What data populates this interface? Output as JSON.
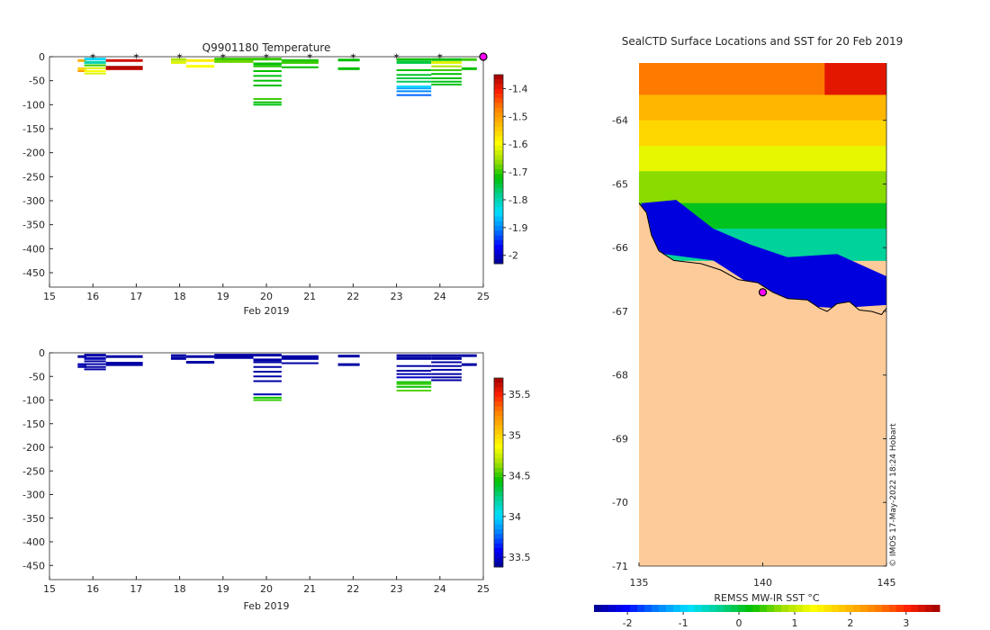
{
  "palette": [
    "#00008f",
    "#0000ff",
    "#0080ff",
    "#00e0ff",
    "#00d090",
    "#00c000",
    "#a0e000",
    "#ffff00",
    "#ffc000",
    "#ff8000",
    "#ff2000",
    "#a00000"
  ],
  "land_color": "#fccb99",
  "marker_color": "#ff00ff",
  "chart_data": [
    {
      "id": "temperature",
      "type": "heatmap",
      "title": "Q9901180  Temperature",
      "xlabel": "Feb 2019",
      "ylabel": "",
      "xlim": [
        15,
        25
      ],
      "ylim": [
        -480,
        0
      ],
      "xticks": [
        15,
        16,
        17,
        18,
        19,
        20,
        21,
        22,
        23,
        24,
        25
      ],
      "yticks": [
        0,
        -50,
        -100,
        -150,
        -200,
        -250,
        -300,
        -350,
        -400,
        -450
      ],
      "colorbar": {
        "min": -2.03,
        "max": -1.35,
        "ticks": [
          -1.4,
          -1.5,
          -1.6,
          -1.7,
          -1.8,
          -1.9,
          -2
        ]
      },
      "surface_markers": [
        16,
        17,
        18,
        19,
        20,
        21,
        22,
        23,
        24
      ],
      "current_marker": 25,
      "profiles": [
        {
          "x0": 15.65,
          "x1": 15.85,
          "layers": [
            [
              -8,
              -1.52
            ],
            [
              -25,
              -1.55
            ],
            [
              -30,
              -1.5
            ]
          ]
        },
        {
          "x0": 15.8,
          "x1": 16.3,
          "layers": [
            [
              -5,
              -1.85
            ],
            [
              -12,
              -1.8
            ],
            [
              -18,
              -1.7
            ],
            [
              -24,
              -1.62
            ],
            [
              -30,
              -1.6
            ],
            [
              -35,
              -1.62
            ]
          ]
        },
        {
          "x0": 16.3,
          "x1": 17.15,
          "layers": [
            [
              -8,
              -1.38
            ],
            [
              -22,
              -1.36
            ],
            [
              -26,
              -1.37
            ]
          ]
        },
        {
          "x0": 17.8,
          "x1": 18.15,
          "layers": [
            [
              -6,
              -1.65
            ],
            [
              -12,
              -1.62
            ]
          ]
        },
        {
          "x0": 18.15,
          "x1": 18.8,
          "layers": [
            [
              -8,
              -1.58
            ],
            [
              -20,
              -1.6
            ]
          ]
        },
        {
          "x0": 18.8,
          "x1": 19.7,
          "layers": [
            [
              -5,
              -1.7
            ],
            [
              -10,
              -1.68
            ]
          ]
        },
        {
          "x0": 19.7,
          "x1": 20.35,
          "layers": [
            [
              -5,
              -1.7
            ],
            [
              -15,
              -1.72
            ],
            [
              -20,
              -1.71
            ],
            [
              -30,
              -1.72
            ],
            [
              -40,
              -1.73
            ],
            [
              -50,
              -1.72
            ],
            [
              -60,
              -1.72
            ],
            [
              -88,
              -1.7
            ],
            [
              -95,
              -1.72
            ],
            [
              -100,
              -1.73
            ]
          ]
        },
        {
          "x0": 20.35,
          "x1": 21.2,
          "layers": [
            [
              -8,
              -1.71
            ],
            [
              -12,
              -1.7
            ],
            [
              -22,
              -1.72
            ]
          ]
        },
        {
          "x0": 21.65,
          "x1": 22.15,
          "layers": [
            [
              -7,
              -1.72
            ],
            [
              -25,
              -1.72
            ]
          ]
        },
        {
          "x0": 23.0,
          "x1": 23.8,
          "layers": [
            [
              -6,
              -1.72
            ],
            [
              -12,
              -1.75
            ],
            [
              -28,
              -1.72
            ],
            [
              -38,
              -1.74
            ],
            [
              -45,
              -1.75
            ],
            [
              -52,
              -1.76
            ],
            [
              -62,
              -1.85
            ],
            [
              -66,
              -1.88
            ],
            [
              -72,
              -1.9
            ],
            [
              -80,
              -1.92
            ]
          ]
        },
        {
          "x0": 23.8,
          "x1": 24.5,
          "layers": [
            [
              -6,
              -1.72
            ],
            [
              -12,
              -1.62
            ],
            [
              -20,
              -1.65
            ],
            [
              -28,
              -1.7
            ],
            [
              -36,
              -1.72
            ],
            [
              -45,
              -1.72
            ],
            [
              -52,
              -1.73
            ],
            [
              -58,
              -1.73
            ]
          ]
        },
        {
          "x0": 24.5,
          "x1": 24.85,
          "layers": [
            [
              -6,
              -1.7
            ],
            [
              -25,
              -1.72
            ]
          ]
        }
      ]
    },
    {
      "id": "salinity",
      "type": "heatmap",
      "title": "",
      "xlabel": "Feb 2019",
      "ylabel": "",
      "xlim": [
        15,
        25
      ],
      "ylim": [
        -480,
        0
      ],
      "xticks": [
        15,
        16,
        17,
        18,
        19,
        20,
        21,
        22,
        23,
        24,
        25
      ],
      "yticks": [
        0,
        -50,
        -100,
        -150,
        -200,
        -250,
        -300,
        -350,
        -400,
        -450
      ],
      "colorbar": {
        "min": 33.38,
        "max": 35.7,
        "ticks": [
          35.5,
          35,
          34.5,
          34,
          33.5
        ]
      },
      "profiles": [
        {
          "x0": 15.65,
          "x1": 15.85,
          "layers": [
            [
              -8,
              33.42
            ],
            [
              -25,
              33.45
            ],
            [
              -30,
              33.42
            ]
          ]
        },
        {
          "x0": 15.8,
          "x1": 16.3,
          "layers": [
            [
              -5,
              33.42
            ],
            [
              -12,
              33.45
            ],
            [
              -18,
              33.42
            ],
            [
              -24,
              33.43
            ],
            [
              -30,
              33.42
            ],
            [
              -35,
              33.42
            ]
          ]
        },
        {
          "x0": 16.3,
          "x1": 17.15,
          "layers": [
            [
              -8,
              33.42
            ],
            [
              -22,
              33.42
            ],
            [
              -26,
              33.42
            ]
          ]
        },
        {
          "x0": 17.8,
          "x1": 18.15,
          "layers": [
            [
              -6,
              33.42
            ],
            [
              -12,
              33.42
            ]
          ]
        },
        {
          "x0": 18.15,
          "x1": 18.8,
          "layers": [
            [
              -8,
              33.42
            ],
            [
              -20,
              33.42
            ]
          ]
        },
        {
          "x0": 18.8,
          "x1": 19.7,
          "layers": [
            [
              -5,
              33.42
            ],
            [
              -10,
              33.42
            ]
          ]
        },
        {
          "x0": 19.7,
          "x1": 20.35,
          "layers": [
            [
              -5,
              33.42
            ],
            [
              -15,
              33.42
            ],
            [
              -20,
              33.42
            ],
            [
              -30,
              33.42
            ],
            [
              -40,
              33.42
            ],
            [
              -50,
              33.42
            ],
            [
              -60,
              33.42
            ],
            [
              -88,
              33.45
            ],
            [
              -95,
              34.45
            ],
            [
              -100,
              34.5
            ]
          ]
        },
        {
          "x0": 20.35,
          "x1": 21.2,
          "layers": [
            [
              -8,
              33.42
            ],
            [
              -12,
              33.42
            ],
            [
              -22,
              33.42
            ]
          ]
        },
        {
          "x0": 21.65,
          "x1": 22.15,
          "layers": [
            [
              -7,
              33.42
            ],
            [
              -25,
              33.42
            ]
          ]
        },
        {
          "x0": 23.0,
          "x1": 23.8,
          "layers": [
            [
              -6,
              33.42
            ],
            [
              -12,
              33.42
            ],
            [
              -28,
              33.42
            ],
            [
              -38,
              33.42
            ],
            [
              -45,
              33.45
            ],
            [
              -52,
              33.48
            ],
            [
              -62,
              34.45
            ],
            [
              -66,
              34.5
            ],
            [
              -72,
              34.45
            ],
            [
              -80,
              34.55
            ]
          ]
        },
        {
          "x0": 23.8,
          "x1": 24.5,
          "layers": [
            [
              -6,
              33.42
            ],
            [
              -12,
              33.42
            ],
            [
              -20,
              33.42
            ],
            [
              -28,
              33.42
            ],
            [
              -36,
              33.42
            ],
            [
              -45,
              33.42
            ],
            [
              -52,
              33.42
            ],
            [
              -58,
              33.42
            ]
          ]
        },
        {
          "x0": 24.5,
          "x1": 24.85,
          "layers": [
            [
              -6,
              33.42
            ],
            [
              -25,
              33.42
            ]
          ]
        }
      ]
    },
    {
      "id": "sst_map",
      "type": "heatmap",
      "title": "SealCTD Surface Locations and SST for 20 Feb 2019",
      "xlabel": "",
      "ylabel": "",
      "xlim": [
        135,
        145
      ],
      "ylim": [
        -71,
        -63.1
      ],
      "xticks": [
        135,
        140,
        145
      ],
      "yticks": [
        -64,
        -65,
        -66,
        -67,
        -68,
        -69,
        -70,
        -71
      ],
      "colorbar": {
        "label": "REMSS MW-IR SST °C",
        "min": -2.6,
        "max": 3.6,
        "ticks": [
          -2,
          -1,
          0,
          1,
          2,
          3
        ]
      },
      "sst_bands": [
        {
          "lat_top": -63.1,
          "lat_bottom": -63.6,
          "value": 2.5
        },
        {
          "lat_top": -63.6,
          "lat_bottom": -64.0,
          "value": 2.0
        },
        {
          "lat_top": -64.0,
          "lat_bottom": -64.4,
          "value": 1.7
        },
        {
          "lat_top": -64.4,
          "lat_bottom": -64.8,
          "value": 1.2
        },
        {
          "lat_top": -64.8,
          "lat_bottom": -65.3,
          "value": 0.7
        },
        {
          "lat_top": -65.3,
          "lat_bottom": -65.7,
          "value": 0.1
        },
        {
          "lat_top": -65.7,
          "lat_bottom": -66.2,
          "value": -0.4
        }
      ],
      "hot_corner": {
        "lon_min": 142.5,
        "lat_max": -63.6,
        "value": 3.2
      },
      "cold_region": [
        [
          135.1,
          -65.3
        ],
        [
          136.5,
          -65.25
        ],
        [
          138,
          -65.7
        ],
        [
          139.5,
          -65.95
        ],
        [
          141,
          -66.15
        ],
        [
          143,
          -66.1
        ],
        [
          145,
          -66.45
        ],
        [
          145,
          -66.9
        ],
        [
          143,
          -66.95
        ],
        [
          141,
          -66.9
        ],
        [
          140,
          -66.7
        ],
        [
          138,
          -66.2
        ],
        [
          136,
          -66.1
        ],
        [
          135.1,
          -65.8
        ]
      ],
      "coast": [
        [
          135,
          -65.3
        ],
        [
          135.3,
          -65.45
        ],
        [
          135.5,
          -65.8
        ],
        [
          135.8,
          -66.05
        ],
        [
          136.4,
          -66.2
        ],
        [
          137.5,
          -66.25
        ],
        [
          138.3,
          -66.35
        ],
        [
          139,
          -66.5
        ],
        [
          139.8,
          -66.55
        ],
        [
          140.4,
          -66.7
        ],
        [
          141,
          -66.8
        ],
        [
          141.8,
          -66.82
        ],
        [
          142.3,
          -66.95
        ],
        [
          142.6,
          -67.0
        ],
        [
          143,
          -66.88
        ],
        [
          143.5,
          -66.85
        ],
        [
          143.9,
          -66.98
        ],
        [
          144.4,
          -67.0
        ],
        [
          144.8,
          -67.05
        ],
        [
          145,
          -66.95
        ]
      ],
      "seal_location": {
        "lon": 140.0,
        "lat": -66.7
      },
      "credit": "© IMOS 17-May-2022 18:24 Hobart"
    }
  ]
}
